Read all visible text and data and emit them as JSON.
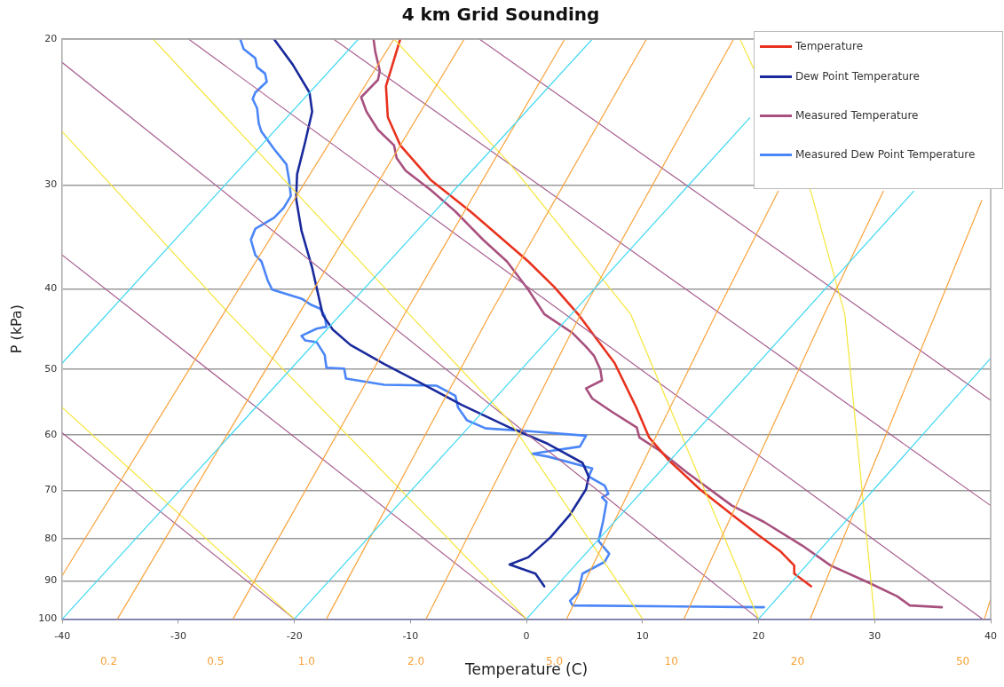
{
  "chart_data": {
    "type": "line",
    "title": "4 km Grid Sounding",
    "xlabel": "Temperature (C)",
    "ylabel": "P (kPa)",
    "xlim": [
      -40,
      40
    ],
    "xticks": [
      -40,
      -30,
      -20,
      -10,
      0,
      10,
      20,
      30,
      40
    ],
    "ylim": [
      100,
      20
    ],
    "yticks": [
      20,
      30,
      40,
      50,
      60,
      70,
      80,
      90,
      100
    ],
    "log": "y",
    "grid": "y",
    "legend": "top right",
    "marker": "none",
    "line_style": "solid",
    "series": [
      {
        "color": "#3fd8f2",
        "x": [
          -40,
          -14.48
        ],
        "values": [
          49.15,
          20
        ]
      },
      {
        "color": "#3fd8f2",
        "x": [
          -40,
          5.67
        ],
        "values": [
          100,
          20
        ]
      },
      {
        "color": "#3fd8f2",
        "x": [
          -20,
          19.23
        ],
        "values": [
          100,
          24.9
        ]
      },
      {
        "color": "#3fd8f2",
        "x": [
          0,
          33.37
        ],
        "values": [
          100,
          30.5
        ]
      },
      {
        "color": "#3fd8f2",
        "x": [
          20,
          40
        ],
        "values": [
          100,
          48.5
        ]
      },
      {
        "color": "#f9a23a",
        "x": [
          -40,
          -26.13,
          -11.42
        ],
        "values": [
          88.6,
          42.9,
          20
        ]
      },
      {
        "color": "#f9a23a",
        "x": [
          -35.25,
          -19.62,
          -5.36
        ],
        "values": [
          100,
          42.9,
          20
        ]
      },
      {
        "color": "#f9a23a",
        "x": [
          -25.29,
          -10.5,
          3.3
        ],
        "values": [
          100,
          42.9,
          20
        ]
      },
      {
        "color": "#f9a23a",
        "x": [
          -17.24,
          -3.14,
          10.34
        ],
        "values": [
          100,
          42.9,
          20
        ]
      },
      {
        "color": "#f9a23a",
        "x": [
          -8.66,
          4.67,
          17.85
        ],
        "values": [
          100,
          42.9,
          20
        ]
      },
      {
        "color": "#f9a23a",
        "x": [
          3.45,
          16.32,
          21.7
        ],
        "values": [
          100,
          42.9,
          30.5
        ]
      },
      {
        "color": "#f9a23a",
        "x": [
          13.56,
          25.67,
          30.76
        ],
        "values": [
          100,
          42.9,
          30.5
        ]
      },
      {
        "color": "#f9a23a",
        "x": [
          24.44,
          35.25,
          39.23
        ],
        "values": [
          100,
          42.9,
          31.31
        ]
      },
      {
        "color": "#f9a23a",
        "x": [
          39.46,
          40
        ],
        "values": [
          100,
          94.6
        ]
      },
      {
        "color": "#f5e63a",
        "x": [
          -40,
          -20
        ],
        "values": [
          55.6,
          100
        ]
      },
      {
        "color": "#f5e63a",
        "x": [
          -40,
          -25.6,
          0
        ],
        "values": [
          25.86,
          42.9,
          100
        ]
      },
      {
        "color": "#f5e63a",
        "x": [
          -32.18,
          -10.11,
          -1.46,
          10
        ],
        "values": [
          20,
          42.9,
          57.75,
          100
        ]
      },
      {
        "color": "#f5e63a",
        "x": [
          -11.42,
          -1.46,
          8.97,
          20
        ],
        "values": [
          20,
          28.24,
          42.9,
          100
        ]
      },
      {
        "color": "#f5e63a",
        "x": [
          18.39,
          24.49,
          27.43,
          30
        ],
        "values": [
          20,
          30.5,
          42.9,
          100
        ]
      },
      {
        "color": "#a86090",
        "x": [
          -40,
          -20
        ],
        "values": [
          59.67,
          100
        ]
      },
      {
        "color": "#a86090",
        "x": [
          -40,
          0
        ],
        "values": [
          36.43,
          100
        ]
      },
      {
        "color": "#a86090",
        "x": [
          -40,
          20
        ],
        "values": [
          21.35,
          100
        ]
      },
      {
        "color": "#a86090",
        "x": [
          -29.12,
          39.3
        ],
        "values": [
          20,
          100
        ]
      },
      {
        "color": "#a86090",
        "x": [
          -16.63,
          40
        ],
        "values": [
          20,
          73.0
        ]
      },
      {
        "color": "#a86090",
        "x": [
          -4.06,
          40
        ],
        "values": [
          20,
          54.5
        ]
      },
      {
        "name": "Temperature",
        "color": "#e8321e",
        "x": [
          -10.88,
          -12.11,
          -11.95,
          -10.88,
          -8.28,
          -4.83,
          0.15,
          2.38,
          4.44,
          7.59,
          9.5,
          10.57,
          12.26,
          14.94,
          17.7,
          19.92,
          21.84,
          23.07,
          23.07,
          24.52
        ],
        "values": [
          20,
          22.8,
          24.84,
          26.85,
          29.55,
          32.27,
          37.07,
          39.78,
          42.9,
          49.15,
          55.75,
          60.43,
          64.36,
          69.76,
          74.85,
          79.12,
          82.78,
          86.2,
          88.16,
          91.33
        ]
      },
      {
        "name": "Dew Point Temperature",
        "color": "#1a2a9c",
        "x": [
          -21.76,
          -20.15,
          -18.7,
          -18.47,
          -19.08,
          -19.77,
          -19.85,
          -19.39,
          -18.47,
          -17.55,
          -16.7,
          -15.17,
          -12.26,
          -8.81,
          -5.59,
          -1.46,
          1.84,
          4.83,
          5.36,
          5.13,
          3.75,
          2.07,
          0.15,
          -1.46,
          0.77,
          1.53
        ],
        "values": [
          20,
          21.46,
          23.2,
          24.46,
          26.65,
          29.11,
          31.16,
          34.03,
          37.73,
          43.01,
          44.78,
          46.74,
          49.28,
          52.21,
          55.19,
          58.78,
          61.5,
          64.84,
          67.34,
          69.76,
          74.85,
          79.72,
          84.26,
          85.98,
          88.16,
          91.33
        ]
      },
      {
        "name": "Measured Temperature",
        "color": "#a8507e",
        "x": [
          -13.18,
          -13.03,
          -12.64,
          -12.8,
          -14.25,
          -13.79,
          -12.8,
          -11.42,
          -11.19,
          -10.42,
          -8.28,
          -6.13,
          -3.75,
          -1.69,
          0.15,
          1.53,
          3.98,
          5.13,
          5.82,
          6.36,
          6.51,
          5.13,
          5.67,
          7.28,
          9.5,
          9.73,
          11.42,
          13.87,
          17.7,
          20.46,
          23.75,
          26.21,
          29.5,
          31.95,
          33.03,
          35.79
        ],
        "values": [
          20,
          20.72,
          21.84,
          22.4,
          23.5,
          24.46,
          25.73,
          26.85,
          27.82,
          28.82,
          30.38,
          32.27,
          34.9,
          37.07,
          40.08,
          42.9,
          45.23,
          46.97,
          48.17,
          50.03,
          51.56,
          52.74,
          54.23,
          56.17,
          58.78,
          60.43,
          62.6,
          66.66,
          73.0,
          76.38,
          81.54,
          86.2,
          90.41,
          93.9,
          96.3,
          96.78
        ]
      },
      {
        "name": "Measured Dew Point Temperature",
        "color": "#4a86f7",
        "x": [
          -24.67,
          -24.37,
          -23.37,
          -23.22,
          -22.53,
          -22.38,
          -23.37,
          -23.6,
          -23.22,
          -23.07,
          -22.84,
          -21.76,
          -20.69,
          -20.46,
          -20.31,
          -20.92,
          -21.76,
          -23.37,
          -23.75,
          -23.37,
          -22.84,
          -22.3,
          -21.92,
          -20.69,
          -19.39,
          -18.54,
          -17.78,
          -17.39,
          -17.24,
          -18.08,
          -19.39,
          -19.08,
          -18.08,
          -17.39,
          -17.24,
          -15.71,
          -15.56,
          -12.26,
          -7.74,
          -6.13,
          -5.9,
          -5.13,
          -3.52,
          0.15,
          5.13,
          4.6,
          0.46,
          1.84,
          5.67,
          5.36,
          6.74,
          7.05,
          6.51,
          6.9,
          6.59,
          6.21,
          7.13,
          6.74,
          4.83,
          4.44,
          3.75,
          3.98,
          20.46
        ],
        "values": [
          20,
          20.56,
          21.09,
          21.62,
          22.01,
          22.51,
          23.2,
          23.62,
          24.22,
          25.28,
          25.86,
          27.13,
          28.31,
          29.55,
          30.92,
          31.95,
          32.85,
          33.86,
          34.9,
          36.43,
          37.07,
          39.08,
          40.08,
          40.59,
          41.1,
          41.83,
          42.26,
          43.12,
          44.44,
          44.67,
          45.58,
          46.15,
          46.39,
          48.05,
          49.78,
          49.9,
          51.3,
          52.21,
          52.34,
          53.82,
          55.6,
          57.61,
          58.92,
          59.37,
          60.13,
          61.97,
          63.23,
          63.71,
          65.83,
          67.34,
          69.06,
          70.64,
          71.36,
          72.26,
          76.38,
          80.53,
          83.42,
          85.33,
          88.16,
          92.96,
          95.09,
          96.3,
          96.78
        ]
      }
    ],
    "annotations": [
      "0.2",
      "0.5",
      "1.0",
      "2.0",
      "5.0",
      "10",
      "20",
      "50"
    ]
  }
}
